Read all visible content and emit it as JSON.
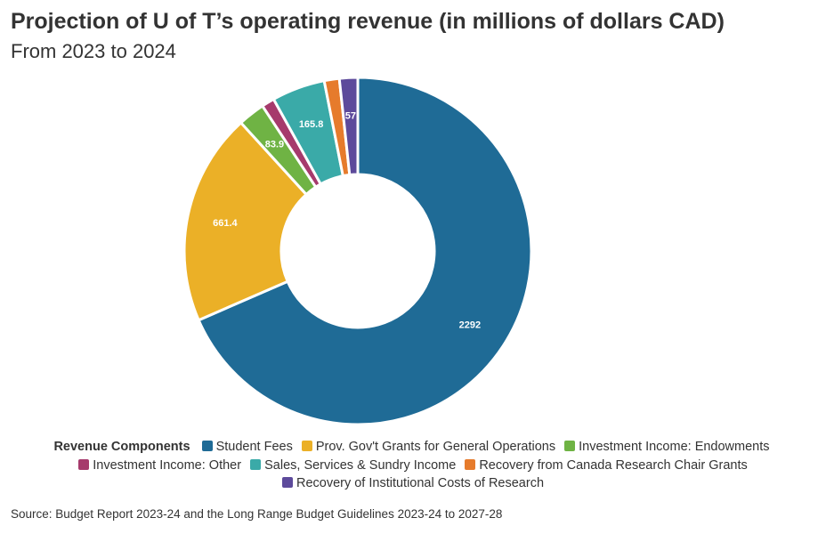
{
  "chart_data": {
    "type": "pie",
    "variant": "donut",
    "title": "Projection of U of T’s operating revenue (in millions of dollars CAD)",
    "subtitle": "From 2023 to 2024",
    "legend_title": "Revenue Components",
    "legend_position": "bottom",
    "source": "Source: Budget Report 2023-24 and the Long Range Budget Guidelines 2023-24 to 2027-28",
    "categories": [
      "Student Fees",
      "Prov. Gov't Grants for General Operations",
      "Investment Income: Endowments",
      "Investment Income: Other",
      "Sales, Services & Sundry Income",
      "Recovery from Canada Research Chair Grants",
      "Recovery of Institutional Costs of Research"
    ],
    "values": [
      2292,
      661.4,
      83.9,
      40,
      165.8,
      47,
      57
    ],
    "data_labels": [
      "2292",
      "661.4",
      "83.9",
      "",
      "165.8",
      "",
      "57"
    ],
    "colors": [
      "#1f6b96",
      "#ebb027",
      "#6fb344",
      "#a63a6c",
      "#3aaaa8",
      "#e67b2c",
      "#5d4a9b"
    ]
  }
}
